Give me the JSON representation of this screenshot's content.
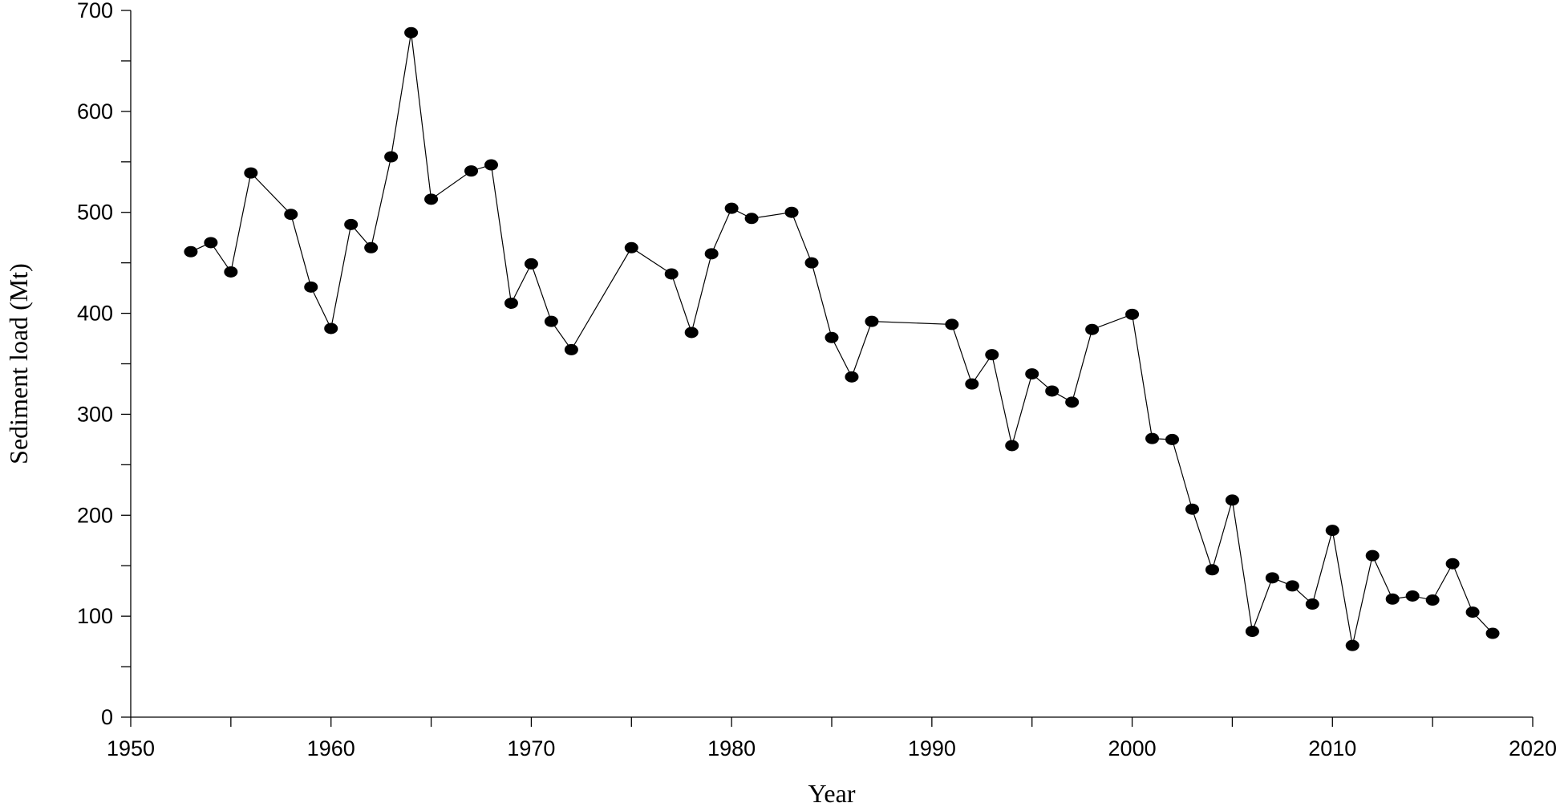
{
  "chart_data": {
    "type": "line",
    "title": "",
    "xlabel": "Year",
    "ylabel": "Sediment load (Mt)",
    "xlim": [
      1950,
      2020
    ],
    "ylim": [
      0,
      700
    ],
    "x_ticks": [
      1950,
      1960,
      1970,
      1980,
      1990,
      2000,
      2010,
      2020
    ],
    "y_ticks": [
      0,
      100,
      200,
      300,
      400,
      500,
      600,
      700
    ],
    "x_minor_step": 5,
    "y_minor_step": 50,
    "grid": false,
    "legend": "none",
    "marker": "filled-circle",
    "line_color": "#000000",
    "series": [
      {
        "x": [
          1953,
          1954,
          1955,
          1956,
          1958,
          1959,
          1960,
          1961,
          1962,
          1963,
          1964,
          1965,
          1967,
          1968,
          1969,
          1970,
          1971,
          1972,
          1975,
          1977,
          1978,
          1979,
          1980,
          1981,
          1983,
          1984,
          1985,
          1986,
          1987,
          1991,
          1992,
          1993,
          1994,
          1995,
          1996,
          1997,
          1998,
          2000,
          2001,
          2002,
          2003,
          2004,
          2005,
          2006,
          2007,
          2008,
          2009,
          2010,
          2011,
          2012,
          2013,
          2014,
          2015,
          2016,
          2017,
          2018
        ],
        "values": [
          461,
          470,
          441,
          539,
          498,
          426,
          385,
          488,
          465,
          555,
          678,
          513,
          541,
          547,
          410,
          449,
          392,
          364,
          465,
          439,
          381,
          459,
          504,
          494,
          500,
          450,
          376,
          337,
          392,
          389,
          330,
          359,
          269,
          340,
          323,
          312,
          384,
          399,
          276,
          275,
          206,
          146,
          215,
          85,
          138,
          130,
          112,
          185,
          71,
          160,
          117,
          120,
          116,
          152,
          104,
          83
        ]
      }
    ]
  }
}
